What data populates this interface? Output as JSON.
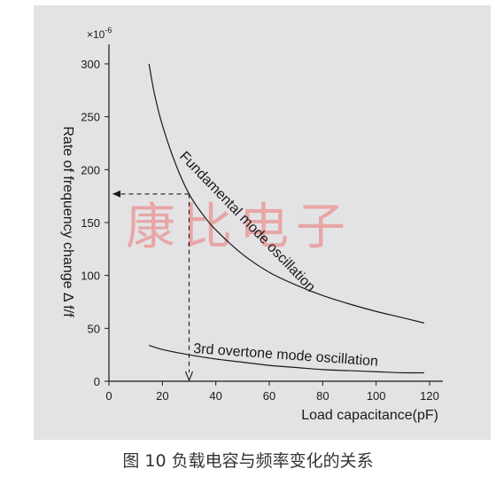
{
  "caption": "图 10 负载电容与频率变化的关系",
  "watermark": "康比电子",
  "chart_data": {
    "type": "line",
    "xlabel": "Load capacitance(pF)",
    "ylabel": "Rate of frequency change Δ f/f",
    "y_multiplier": "×10",
    "y_multiplier_exp": "-6",
    "x_ticks": [
      0,
      20,
      40,
      60,
      80,
      100,
      120
    ],
    "y_ticks": [
      0,
      50,
      100,
      150,
      200,
      250,
      300
    ],
    "xlim": [
      0,
      120
    ],
    "ylim": [
      0,
      300
    ],
    "grid": false,
    "series": [
      {
        "name": "Fundamental mode oscillation",
        "x": [
          15,
          17,
          20,
          25,
          30,
          35,
          40,
          50,
          60,
          70,
          80,
          90,
          100,
          110,
          118
        ],
        "y": [
          300,
          272,
          242,
          205,
          177,
          158,
          143,
          120,
          103,
          91,
          81,
          73,
          66,
          60,
          55
        ]
      },
      {
        "name": "3rd overtone mode oscillation",
        "x": [
          15,
          20,
          30,
          40,
          50,
          60,
          70,
          80,
          90,
          100,
          110,
          118
        ],
        "y": [
          34,
          30,
          25,
          21,
          18,
          15,
          13,
          11,
          10,
          9,
          8,
          8
        ]
      }
    ],
    "annotation": {
      "x": 30,
      "y": 177,
      "description": "dashed arrows from 30 pF to the fundamental curve and across to the y axis"
    },
    "colors": {
      "line": "#1a1a1a",
      "background": "#e3e3e5",
      "watermark": "#e8a6a6"
    }
  }
}
